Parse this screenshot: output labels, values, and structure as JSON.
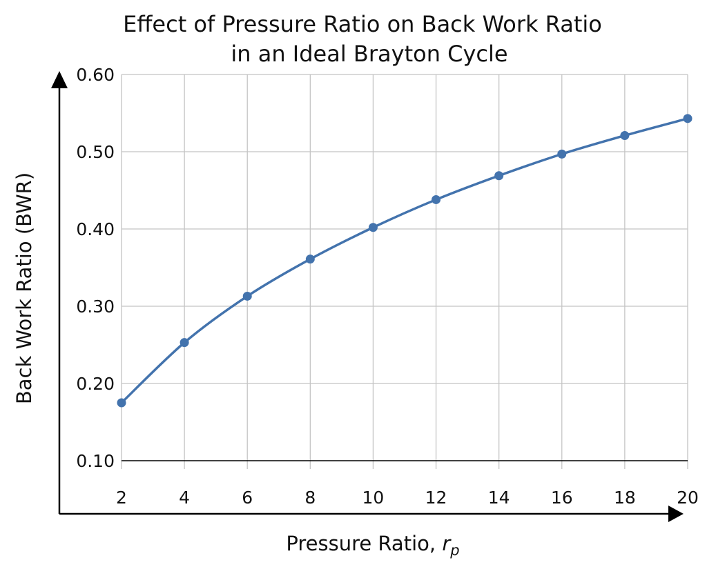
{
  "chart_data": {
    "type": "line",
    "title": [
      "Effect of Pressure Ratio on Back Work Ratio",
      "in an Ideal Brayton Cycle"
    ],
    "xlabel": "Pressure Ratio, ",
    "xlabel_var": "r",
    "xlabel_sub": "p",
    "ylabel": "Back Work Ratio (BWR)",
    "xlim": [
      2,
      20
    ],
    "ylim": [
      0.1,
      0.6
    ],
    "xticks": [
      "2",
      "4",
      "6",
      "8",
      "10",
      "12",
      "14",
      "16",
      "18",
      "20"
    ],
    "yticks": [
      "0.10",
      "0.20",
      "0.30",
      "0.40",
      "0.50",
      "0.60"
    ],
    "grid": true,
    "legend": "none",
    "series": [
      {
        "color": "#4373ad",
        "marker": "circle",
        "x": [
          2,
          4,
          6,
          8,
          10,
          12,
          14,
          16,
          18,
          20
        ],
        "y": [
          0.175,
          0.253,
          0.313,
          0.361,
          0.402,
          0.438,
          0.469,
          0.497,
          0.521,
          0.543
        ]
      }
    ]
  }
}
